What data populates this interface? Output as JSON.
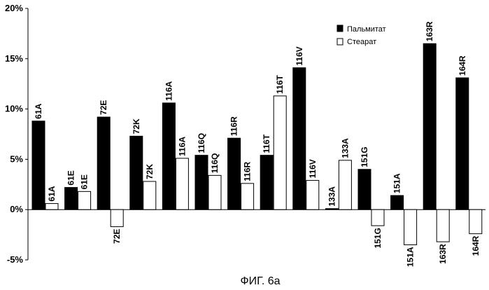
{
  "figure_caption": "ФИГ. 6а",
  "chart_data": {
    "type": "bar",
    "ylim": [
      -5,
      20
    ],
    "yticks": [
      "-5%",
      "0%",
      "5%",
      "10%",
      "15%",
      "20%"
    ],
    "ytick_values": [
      -5,
      0,
      5,
      10,
      15,
      20
    ],
    "legend_position": "top-right",
    "colors": {
      "palmitate": "#000000",
      "stearate": "#ffffff",
      "outline": "#000000"
    },
    "series": [
      {
        "name": "Пальмитат",
        "labels": [
          "61A",
          "61E",
          "72E",
          "72K",
          "116A",
          "116Q",
          "116R",
          "116T",
          "116V",
          "133A",
          "151G",
          "151A",
          "163R",
          "164R"
        ],
        "values": [
          8.8,
          2.2,
          9.2,
          7.3,
          10.6,
          5.4,
          7.1,
          5.4,
          14.1,
          0.1,
          4.0,
          1.4,
          16.5,
          13.1
        ]
      },
      {
        "name": "Стеарат",
        "labels": [
          "61A",
          "61E",
          "72E",
          "72K",
          "116A",
          "116Q",
          "116R",
          "116T",
          "116V",
          "133A",
          "151G",
          "151A",
          "163R",
          "164R"
        ],
        "values": [
          0.6,
          1.8,
          -1.7,
          2.8,
          5.1,
          3.4,
          2.6,
          11.3,
          2.9,
          4.9,
          -1.6,
          -3.5,
          -3.2,
          -2.4
        ]
      }
    ]
  }
}
